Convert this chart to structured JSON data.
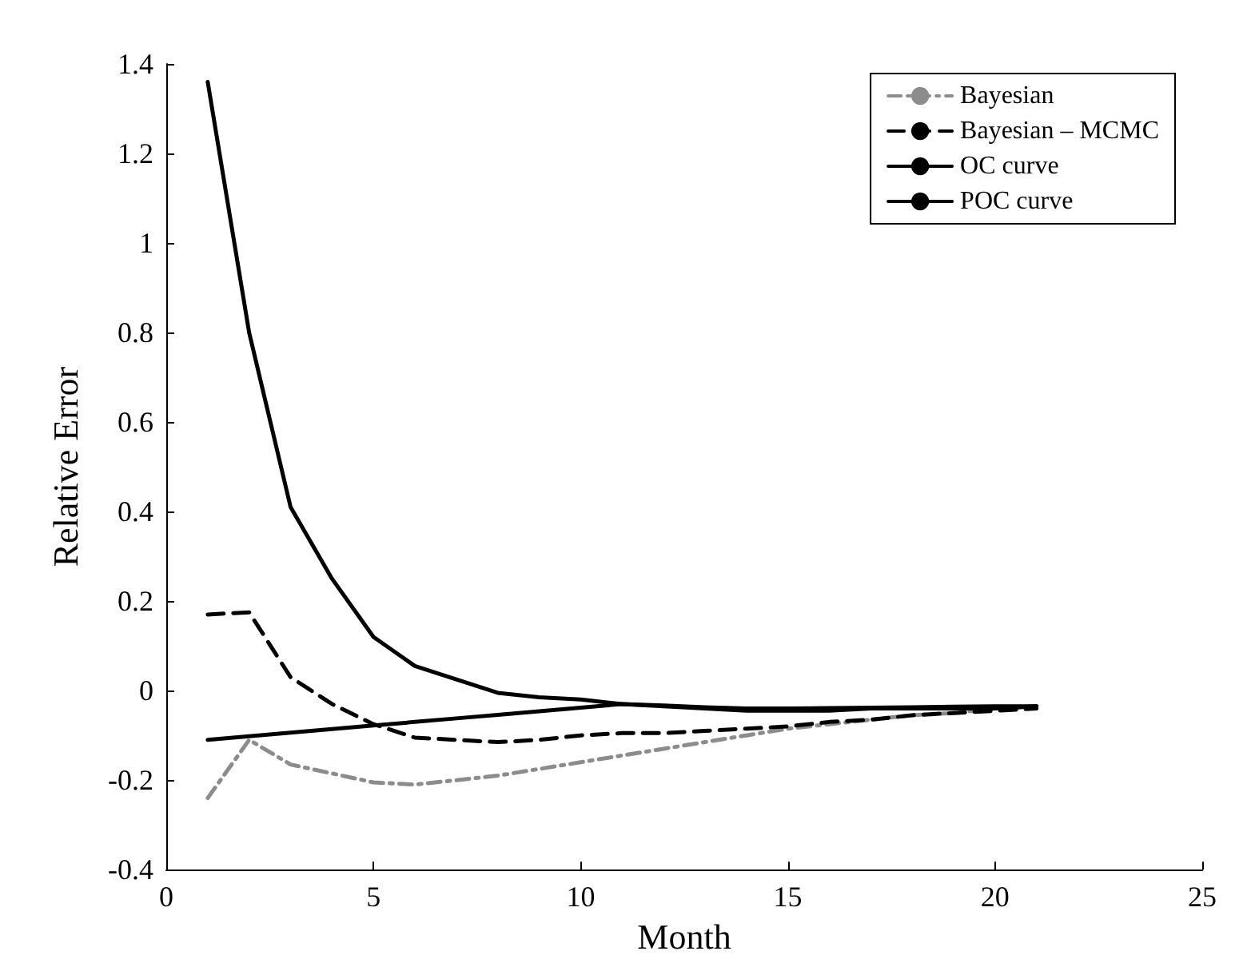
{
  "chart_data": {
    "type": "line",
    "xlabel": "Month",
    "ylabel": "Relative Error",
    "x": [
      1,
      2,
      3,
      4,
      5,
      6,
      7,
      8,
      9,
      10,
      11,
      12,
      13,
      14,
      15,
      16,
      17,
      18,
      19,
      20,
      21
    ],
    "series": [
      {
        "name": "Bayesian",
        "color": "#8c8c8c",
        "line_style": "dashdot",
        "values": [
          -0.24,
          -0.11,
          -0.165,
          -0.185,
          -0.205,
          -0.21,
          -0.2,
          -0.19,
          -0.175,
          -0.16,
          -0.145,
          -0.13,
          -0.115,
          -0.1,
          -0.085,
          -0.075,
          -0.065,
          -0.055,
          -0.05,
          -0.04,
          -0.035
        ]
      },
      {
        "name": "Bayesian – MCMC",
        "color": "#000000",
        "line_style": "dashed",
        "values": [
          0.17,
          0.175,
          0.03,
          -0.03,
          -0.075,
          -0.105,
          -0.11,
          -0.115,
          -0.11,
          -0.1,
          -0.095,
          -0.095,
          -0.09,
          -0.085,
          -0.08,
          -0.07,
          -0.065,
          -0.055,
          -0.05,
          -0.045,
          -0.04
        ]
      },
      {
        "name": "OC curve",
        "color": "#000000",
        "line_style": "solid",
        "values": [
          1.36,
          0.8,
          0.41,
          0.25,
          0.12,
          0.055,
          0.025,
          -0.005,
          -0.015,
          -0.02,
          -0.03,
          -0.035,
          -0.04,
          -0.045,
          -0.045,
          -0.045,
          -0.04,
          -0.04,
          -0.04,
          -0.04,
          -0.035
        ]
      },
      {
        "name": "POC curve",
        "color": "#000000",
        "line_style": "solid",
        "values": [
          -0.11,
          -0.102,
          -0.094,
          -0.086,
          -0.078,
          -0.07,
          -0.062,
          -0.054,
          -0.046,
          -0.038,
          -0.03,
          -0.033,
          -0.037,
          -0.04,
          -0.04,
          -0.039,
          -0.038,
          -0.037,
          -0.036,
          -0.035,
          -0.035
        ]
      }
    ],
    "xlim": [
      0,
      25
    ],
    "xticks": [
      0,
      5,
      10,
      15,
      20,
      25
    ],
    "ylim": [
      -0.4,
      1.4
    ],
    "yticks": [
      -0.4,
      -0.2,
      0,
      0.2,
      0.4,
      0.6,
      0.8,
      1,
      1.2,
      1.4
    ],
    "grid": false,
    "legend": "top right",
    "marker": "none"
  }
}
